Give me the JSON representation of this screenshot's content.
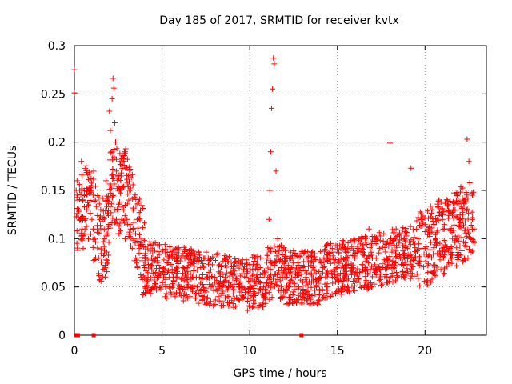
{
  "chart_data": {
    "type": "scatter",
    "title": "Day 185 of 2017, SRMTID for receiver kvtx",
    "xlabel": "GPS time / hours",
    "ylabel": "SRMTID / TECUs",
    "xlim": [
      0,
      23.5
    ],
    "ylim": [
      0,
      0.3
    ],
    "xticks": [
      0,
      5,
      10,
      15,
      20
    ],
    "yticks": [
      0,
      0.05,
      0.1,
      0.15,
      0.2,
      0.25,
      0.3
    ],
    "xtick_labels": [
      "0",
      "5",
      "10",
      "15",
      "20"
    ],
    "ytick_labels": [
      "0",
      "0.05",
      "0.1",
      "0.15",
      "0.2",
      "0.25",
      "0.3"
    ],
    "marker": "+",
    "color": "#ff0000",
    "grid": true,
    "series": [
      {
        "name": "SRMTID",
        "x": [
          0.0,
          0.0,
          0.1,
          0.15,
          0.2,
          0.25,
          0.3,
          0.35,
          0.4,
          0.45,
          0.5,
          0.6,
          0.7,
          0.8,
          0.9,
          1.0,
          1.1,
          1.2,
          1.3,
          1.4,
          1.5,
          1.6,
          1.7,
          1.8,
          1.9,
          2.0,
          2.05,
          2.1,
          2.15,
          2.2,
          2.25,
          2.3,
          2.35,
          2.4,
          2.5,
          2.6,
          2.7,
          2.8,
          2.9,
          3.0,
          3.1,
          3.2,
          3.3,
          3.4,
          3.5,
          3.6,
          3.7,
          3.8,
          4.0,
          4.2,
          4.4,
          4.6,
          4.8,
          5.0,
          5.2,
          5.4,
          5.6,
          5.8,
          6.0,
          6.2,
          6.4,
          6.6,
          6.8,
          7.0,
          7.2,
          7.4,
          7.6,
          7.8,
          8.0,
          8.2,
          8.4,
          8.6,
          8.8,
          9.0,
          9.2,
          9.4,
          9.6,
          9.8,
          10.0,
          10.2,
          10.4,
          10.6,
          10.8,
          11.0,
          11.1,
          11.15,
          11.2,
          11.25,
          11.3,
          11.35,
          11.4,
          11.5,
          11.6,
          11.8,
          12.0,
          12.2,
          12.4,
          12.6,
          12.8,
          13.0,
          13.2,
          13.4,
          13.6,
          13.8,
          14.0,
          14.2,
          14.4,
          14.6,
          14.8,
          15.0,
          15.2,
          15.4,
          15.6,
          15.8,
          16.0,
          16.2,
          16.4,
          16.6,
          16.8,
          17.0,
          17.2,
          17.4,
          17.6,
          17.8,
          18.0,
          18.2,
          18.4,
          18.6,
          18.8,
          19.0,
          19.2,
          19.4,
          19.6,
          19.8,
          20.0,
          20.2,
          20.4,
          20.6,
          20.8,
          21.0,
          21.2,
          21.4,
          21.6,
          21.8,
          22.0,
          22.2,
          22.4,
          22.5,
          22.6,
          22.7,
          22.8
        ],
        "y": [
          0.275,
          0.251,
          0.15,
          0.16,
          0.14,
          0.13,
          0.15,
          0.12,
          0.18,
          0.1,
          0.09,
          0.11,
          0.13,
          0.1,
          0.15,
          0.12,
          0.17,
          0.14,
          0.11,
          0.08,
          0.13,
          0.12,
          0.1,
          0.16,
          0.14,
          0.232,
          0.212,
          0.19,
          0.245,
          0.266,
          0.256,
          0.22,
          0.2,
          0.17,
          0.15,
          0.18,
          0.12,
          0.13,
          0.1,
          0.12,
          0.14,
          0.11,
          0.09,
          0.1,
          0.08,
          0.07,
          0.09,
          0.06,
          0.07,
          0.06,
          0.08,
          0.05,
          0.06,
          0.07,
          0.05,
          0.06,
          0.08,
          0.06,
          0.05,
          0.07,
          0.06,
          0.04,
          0.06,
          0.05,
          0.07,
          0.04,
          0.06,
          0.05,
          0.06,
          0.04,
          0.05,
          0.06,
          0.04,
          0.05,
          0.03,
          0.05,
          0.04,
          0.06,
          0.05,
          0.04,
          0.06,
          0.07,
          0.05,
          0.08,
          0.12,
          0.15,
          0.19,
          0.235,
          0.255,
          0.287,
          0.281,
          0.17,
          0.1,
          0.07,
          0.06,
          0.05,
          0.07,
          0.06,
          0.05,
          0.07,
          0.06,
          0.04,
          0.07,
          0.05,
          0.06,
          0.07,
          0.05,
          0.08,
          0.06,
          0.07,
          0.08,
          0.06,
          0.09,
          0.07,
          0.08,
          0.1,
          0.09,
          0.07,
          0.11,
          0.08,
          0.1,
          0.09,
          0.07,
          0.08,
          0.199,
          0.07,
          0.06,
          0.08,
          0.1,
          0.09,
          0.173,
          0.08,
          0.1,
          0.12,
          0.09,
          0.11,
          0.13,
          0.1,
          0.14,
          0.12,
          0.11,
          0.09,
          0.13,
          0.1,
          0.12,
          0.14,
          0.203,
          0.18,
          0.1,
          0.12,
          0.11
        ],
        "zero_x": [
          0.1,
          0.2,
          1.1,
          12.95
        ]
      }
    ]
  }
}
